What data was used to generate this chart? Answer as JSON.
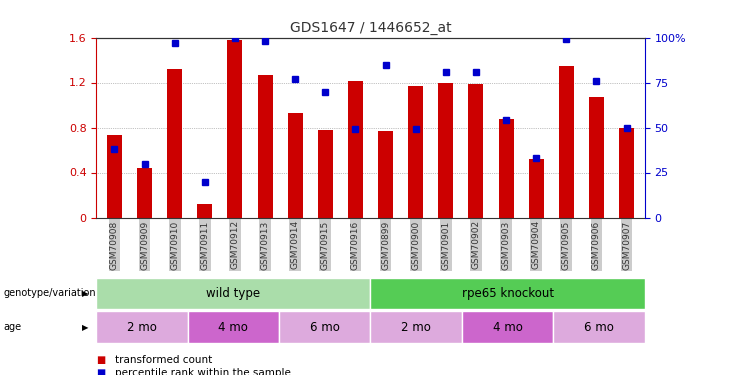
{
  "title": "GDS1647 / 1446652_at",
  "samples": [
    "GSM70908",
    "GSM70909",
    "GSM70910",
    "GSM70911",
    "GSM70912",
    "GSM70913",
    "GSM70914",
    "GSM70915",
    "GSM70916",
    "GSM70899",
    "GSM70900",
    "GSM70901",
    "GSM70902",
    "GSM70903",
    "GSM70904",
    "GSM70905",
    "GSM70906",
    "GSM70907"
  ],
  "transformed_count": [
    0.73,
    0.44,
    1.32,
    0.12,
    1.58,
    1.27,
    0.93,
    0.78,
    1.21,
    0.77,
    1.17,
    1.2,
    1.19,
    0.88,
    0.52,
    1.35,
    1.07,
    0.8
  ],
  "percentile_rank_pct": [
    38,
    30,
    97,
    20,
    100,
    98,
    77,
    70,
    49,
    85,
    49,
    81,
    81,
    54,
    33,
    99,
    76,
    50
  ],
  "bar_color": "#cc0000",
  "dot_color": "#0000cc",
  "ylim_left": [
    0,
    1.6
  ],
  "ylim_right": [
    0,
    100
  ],
  "yticks_left": [
    0,
    0.4,
    0.8,
    1.2,
    1.6
  ],
  "yticks_right": [
    0,
    25,
    50,
    75,
    100
  ],
  "genotype_groups": [
    {
      "label": "wild type",
      "start": 0,
      "end": 9,
      "color": "#aaddaa"
    },
    {
      "label": "rpe65 knockout",
      "start": 9,
      "end": 18,
      "color": "#55cc55"
    }
  ],
  "age_groups": [
    {
      "label": "2 mo",
      "start": 0,
      "end": 3,
      "color": "#ddaadd"
    },
    {
      "label": "4 mo",
      "start": 3,
      "end": 6,
      "color": "#cc66cc"
    },
    {
      "label": "6 mo",
      "start": 6,
      "end": 9,
      "color": "#ddaadd"
    },
    {
      "label": "2 mo",
      "start": 9,
      "end": 12,
      "color": "#ddaadd"
    },
    {
      "label": "4 mo",
      "start": 12,
      "end": 15,
      "color": "#cc66cc"
    },
    {
      "label": "6 mo",
      "start": 15,
      "end": 18,
      "color": "#ddaadd"
    }
  ],
  "legend_items": [
    {
      "label": "transformed count",
      "color": "#cc0000"
    },
    {
      "label": "percentile rank within the sample",
      "color": "#0000cc"
    }
  ],
  "background_color": "#ffffff",
  "bar_width": 0.5
}
